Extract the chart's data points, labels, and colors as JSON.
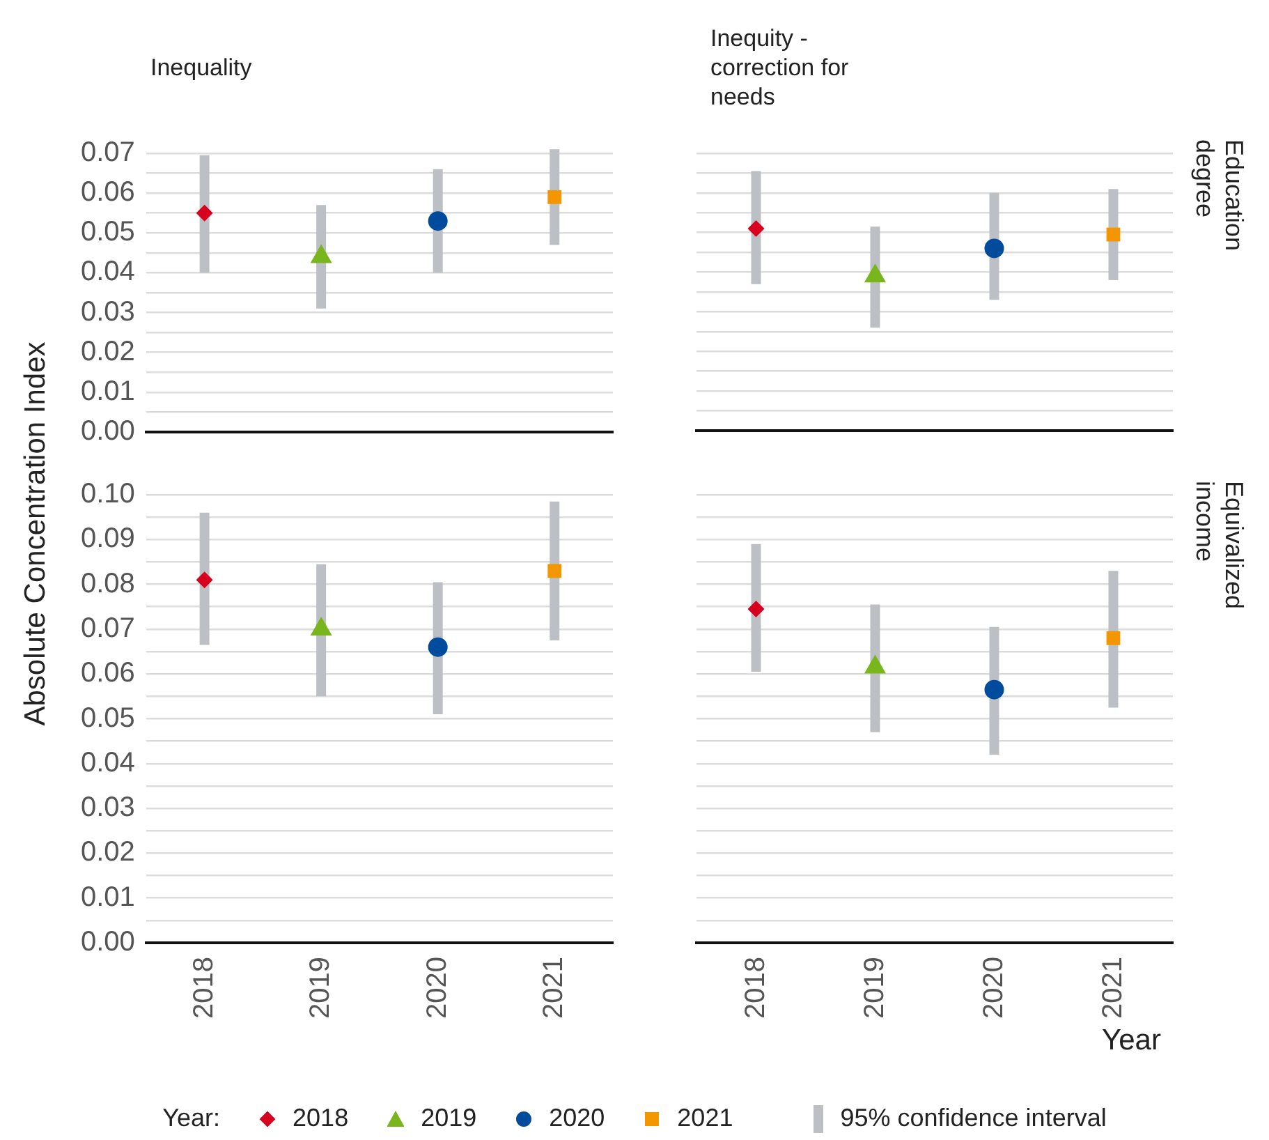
{
  "chart_data": [
    {
      "type": "scatter",
      "title": "Inequality",
      "ylabel": "Absolute Concentration Index",
      "legend": "bottom",
      "legend_title": "Year:",
      "annotations": [
        "95% confidence interval"
      ],
      "categories": [
        "2018",
        "2019",
        "2020",
        "2021"
      ],
      "ylim": [
        0,
        0.07
      ],
      "yticks": [
        {
          "value": 0,
          "label": "0.00"
        },
        {
          "value": 0.005,
          "label": null
        },
        {
          "value": 0.01,
          "label": "0.01"
        },
        {
          "value": 0.015,
          "label": null
        },
        {
          "value": 0.02,
          "label": "0.02"
        },
        {
          "value": 0.025,
          "label": null
        },
        {
          "value": 0.03,
          "label": "0.03"
        },
        {
          "value": 0.035,
          "label": null
        },
        {
          "value": 0.04,
          "label": "0.04"
        },
        {
          "value": 0.045,
          "label": null
        },
        {
          "value": 0.05,
          "label": "0.05"
        },
        {
          "value": 0.055,
          "label": null
        },
        {
          "value": 0.06,
          "label": "0.06"
        },
        {
          "value": 0.065,
          "label": null
        },
        {
          "value": 0.07,
          "label": "0.07"
        }
      ],
      "grid": "y",
      "tick_labels": "y",
      "series": [
        {
          "name": "2018",
          "color": "#d7001e",
          "marker": "diamond",
          "values": [
            0.055,
            null,
            null,
            null
          ],
          "errors": [
            [
              0.04,
              0.0695
            ],
            null,
            null,
            null
          ]
        },
        {
          "name": "2019",
          "color": "#79b51c",
          "marker": "triangle",
          "values": [
            null,
            0.044,
            null,
            null
          ],
          "errors": [
            null,
            [
              0.031,
              0.057
            ],
            null,
            null
          ]
        },
        {
          "name": "2020",
          "color": "#004b9b",
          "marker": "circle",
          "values": [
            null,
            null,
            0.053,
            null
          ],
          "errors": [
            null,
            null,
            [
              0.04,
              0.066
            ],
            null
          ]
        },
        {
          "name": "2021",
          "color": "#f49600",
          "marker": "square",
          "values": [
            null,
            null,
            null,
            0.059
          ],
          "errors": [
            null,
            null,
            null,
            [
              0.047,
              0.071
            ]
          ]
        }
      ]
    },
    {
      "type": "scatter",
      "title": "Inequity - correction for needs",
      "y2label": "Education degree",
      "categories": [
        "2018",
        "2019",
        "2020",
        "2021"
      ],
      "ylim": [
        0,
        0.07
      ],
      "yticks": [
        0,
        0.005,
        0.01,
        0.015,
        0.02,
        0.025,
        0.03,
        0.035,
        0.04,
        0.045,
        0.05,
        0.055,
        0.06,
        0.065,
        0.07
      ],
      "grid": "y",
      "tick_labels": false,
      "series": [
        {
          "color": "#d7001e",
          "marker": "diamond",
          "values": [
            0.051,
            null,
            null,
            null
          ],
          "errors": [
            [
              0.037,
              0.0655
            ],
            null,
            null,
            null
          ]
        },
        {
          "color": "#79b51c",
          "marker": "triangle",
          "values": [
            null,
            0.039,
            null,
            null
          ],
          "errors": [
            null,
            [
              0.026,
              0.0515
            ],
            null,
            null
          ]
        },
        {
          "color": "#004b9b",
          "marker": "circle",
          "values": [
            null,
            null,
            0.046,
            null
          ],
          "errors": [
            null,
            null,
            [
              0.033,
              0.06
            ],
            null
          ]
        },
        {
          "color": "#f49600",
          "marker": "square",
          "values": [
            null,
            null,
            null,
            0.0495
          ],
          "errors": [
            null,
            null,
            null,
            [
              0.038,
              0.061
            ]
          ]
        }
      ]
    },
    {
      "type": "scatter",
      "categories": [
        "2018",
        "2019",
        "2020",
        "2021"
      ],
      "ylim": [
        0,
        0.1
      ],
      "yticks": [
        {
          "value": 0,
          "label": "0.00"
        },
        {
          "value": 0.005,
          "label": null
        },
        {
          "value": 0.01,
          "label": "0.01"
        },
        {
          "value": 0.015,
          "label": null
        },
        {
          "value": 0.02,
          "label": "0.02"
        },
        {
          "value": 0.025,
          "label": null
        },
        {
          "value": 0.03,
          "label": "0.03"
        },
        {
          "value": 0.035,
          "label": null
        },
        {
          "value": 0.04,
          "label": "0.04"
        },
        {
          "value": 0.045,
          "label": null
        },
        {
          "value": 0.05,
          "label": "0.05"
        },
        {
          "value": 0.055,
          "label": null
        },
        {
          "value": 0.06,
          "label": "0.06"
        },
        {
          "value": 0.065,
          "label": null
        },
        {
          "value": 0.07,
          "label": "0.07"
        },
        {
          "value": 0.075,
          "label": null
        },
        {
          "value": 0.08,
          "label": "0.08"
        },
        {
          "value": 0.085,
          "label": null
        },
        {
          "value": 0.09,
          "label": "0.09"
        },
        {
          "value": 0.095,
          "label": null
        },
        {
          "value": 0.1,
          "label": "0.10"
        }
      ],
      "grid": "y",
      "series": [
        {
          "color": "#d7001e",
          "marker": "diamond",
          "values": [
            0.081,
            null,
            null,
            null
          ],
          "errors": [
            [
              0.0665,
              0.096
            ],
            null,
            null,
            null
          ]
        },
        {
          "color": "#79b51c",
          "marker": "triangle",
          "values": [
            null,
            0.07,
            null,
            null
          ],
          "errors": [
            null,
            [
              0.055,
              0.0845
            ],
            null,
            null
          ]
        },
        {
          "color": "#004b9b",
          "marker": "circle",
          "values": [
            null,
            null,
            0.066,
            null
          ],
          "errors": [
            null,
            null,
            [
              0.051,
              0.0805
            ],
            null
          ]
        },
        {
          "color": "#f49600",
          "marker": "square",
          "values": [
            null,
            null,
            null,
            0.083
          ],
          "errors": [
            null,
            null,
            null,
            [
              0.0675,
              0.0985
            ]
          ]
        }
      ]
    },
    {
      "type": "scatter",
      "xlabel": "Year",
      "y2label": "Equivalized income",
      "categories": [
        "2018",
        "2019",
        "2020",
        "2021"
      ],
      "ylim": [
        0,
        0.1
      ],
      "yticks": [
        0,
        0.005,
        0.01,
        0.015,
        0.02,
        0.025,
        0.03,
        0.035,
        0.04,
        0.045,
        0.05,
        0.055,
        0.06,
        0.065,
        0.07,
        0.075,
        0.08,
        0.085,
        0.09,
        0.095,
        0.1
      ],
      "grid": "y",
      "tick_labels": "x",
      "series": [
        {
          "color": "#d7001e",
          "marker": "diamond",
          "values": [
            0.0745,
            null,
            null,
            null
          ],
          "errors": [
            [
              0.0605,
              0.089
            ],
            null,
            null,
            null
          ]
        },
        {
          "color": "#79b51c",
          "marker": "triangle",
          "values": [
            null,
            0.0615,
            null,
            null
          ],
          "errors": [
            null,
            [
              0.047,
              0.0755
            ],
            null,
            null
          ]
        },
        {
          "color": "#004b9b",
          "marker": "circle",
          "values": [
            null,
            null,
            0.0565,
            null
          ],
          "errors": [
            null,
            null,
            [
              0.042,
              0.0705
            ],
            null
          ]
        },
        {
          "color": "#f49600",
          "marker": "square",
          "values": [
            null,
            null,
            null,
            0.068
          ],
          "errors": [
            null,
            null,
            null,
            [
              0.0525,
              0.083
            ]
          ]
        }
      ]
    }
  ]
}
